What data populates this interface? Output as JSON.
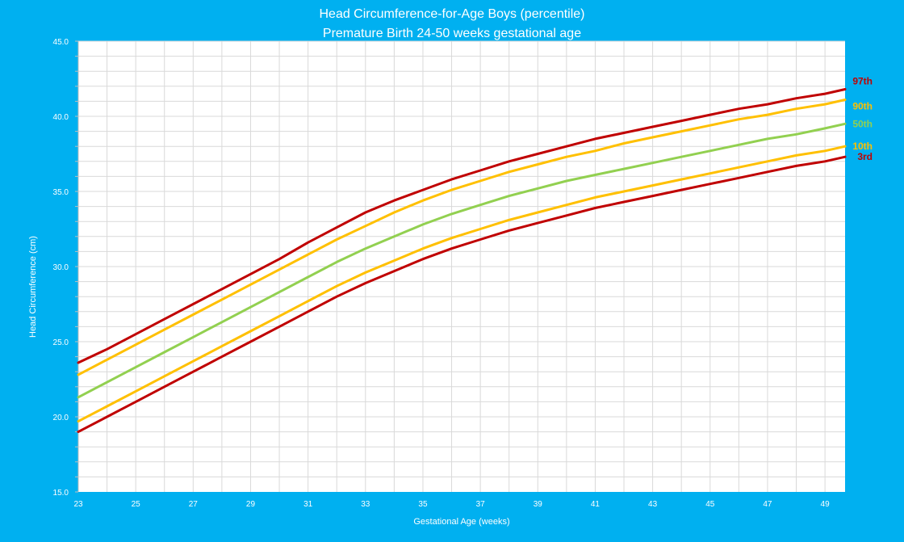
{
  "chart_data": {
    "type": "line",
    "title": "Head Circumference-for-Age Boys (percentile)",
    "subtitle": "Premature Birth 24-50 weeks gestational age",
    "xlabel": "Gestational Age (weeks)",
    "ylabel": "Head Circumference (cm)",
    "xlim": [
      23,
      49.7
    ],
    "ylim": [
      15,
      45
    ],
    "grid": true,
    "x_ticks": [
      23,
      25,
      27,
      29,
      31,
      33,
      35,
      37,
      39,
      41,
      43,
      45,
      47,
      49
    ],
    "y_ticks": [
      "15.0",
      "20.0",
      "25.0",
      "30.0",
      "35.0",
      "40.0",
      "45.0"
    ],
    "legend_placement": "right, at line ends",
    "x": [
      23,
      24,
      25,
      26,
      27,
      28,
      29,
      30,
      31,
      32,
      33,
      34,
      35,
      36,
      37,
      38,
      39,
      40,
      41,
      42,
      43,
      44,
      45,
      46,
      47,
      48,
      49,
      49.7
    ],
    "series": [
      {
        "name": "97th",
        "color": "#c00000",
        "values": [
          23.6,
          24.5,
          25.5,
          26.5,
          27.5,
          28.5,
          29.5,
          30.5,
          31.6,
          32.6,
          33.6,
          34.4,
          35.1,
          35.8,
          36.4,
          37.0,
          37.5,
          38.0,
          38.5,
          38.9,
          39.3,
          39.7,
          40.1,
          40.5,
          40.8,
          41.2,
          41.5,
          41.8
        ]
      },
      {
        "name": "90th",
        "color": "#ffc000",
        "values": [
          22.8,
          23.8,
          24.8,
          25.8,
          26.8,
          27.8,
          28.8,
          29.8,
          30.8,
          31.8,
          32.7,
          33.6,
          34.4,
          35.1,
          35.7,
          36.3,
          36.8,
          37.3,
          37.7,
          38.2,
          38.6,
          39.0,
          39.4,
          39.8,
          40.1,
          40.5,
          40.8,
          41.1
        ]
      },
      {
        "name": "50th",
        "color": "#92d050",
        "values": [
          21.3,
          22.3,
          23.3,
          24.3,
          25.3,
          26.3,
          27.3,
          28.3,
          29.3,
          30.3,
          31.2,
          32.0,
          32.8,
          33.5,
          34.1,
          34.7,
          35.2,
          35.7,
          36.1,
          36.5,
          36.9,
          37.3,
          37.7,
          38.1,
          38.5,
          38.8,
          39.2,
          39.5
        ]
      },
      {
        "name": "10th",
        "color": "#ffc000",
        "values": [
          19.7,
          20.7,
          21.7,
          22.7,
          23.7,
          24.7,
          25.7,
          26.7,
          27.7,
          28.7,
          29.6,
          30.4,
          31.2,
          31.9,
          32.5,
          33.1,
          33.6,
          34.1,
          34.6,
          35.0,
          35.4,
          35.8,
          36.2,
          36.6,
          37.0,
          37.4,
          37.7,
          38.0
        ]
      },
      {
        "name": "3rd",
        "color": "#c00000",
        "values": [
          19.0,
          20.0,
          21.0,
          22.0,
          23.0,
          24.0,
          25.0,
          26.0,
          27.0,
          28.0,
          28.9,
          29.7,
          30.5,
          31.2,
          31.8,
          32.4,
          32.9,
          33.4,
          33.9,
          34.3,
          34.7,
          35.1,
          35.5,
          35.9,
          36.3,
          36.7,
          37.0,
          37.3
        ]
      }
    ]
  }
}
